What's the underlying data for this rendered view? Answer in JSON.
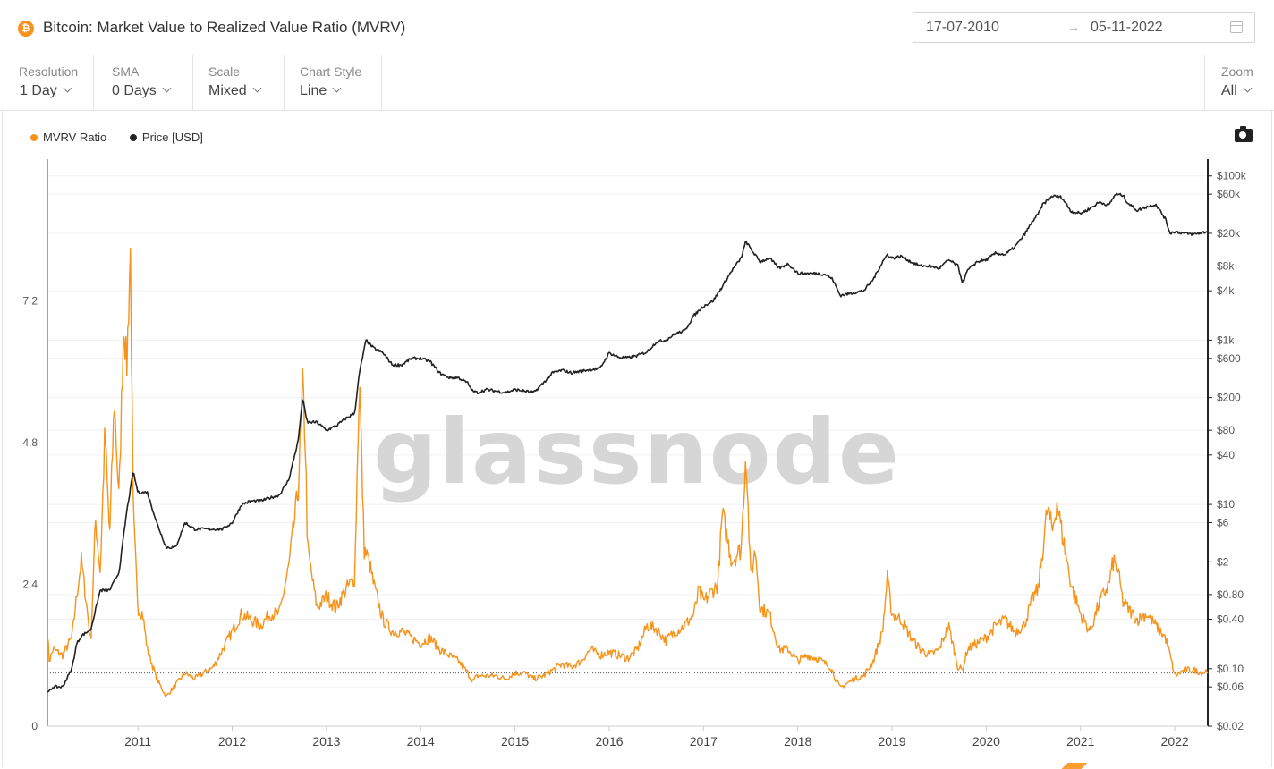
{
  "header": {
    "title": "Bitcoin: Market Value to Realized Value Ratio (MVRV)",
    "coin_symbol": "₿",
    "date_from": "17-07-2010",
    "date_arrow": "→",
    "date_to": "05-11-2022"
  },
  "controls": {
    "resolution": {
      "label": "Resolution",
      "value": "1 Day"
    },
    "sma": {
      "label": "SMA",
      "value": "0 Days"
    },
    "scale": {
      "label": "Scale",
      "value": "Mixed"
    },
    "chart_style": {
      "label": "Chart Style",
      "value": "Line"
    },
    "zoom": {
      "label": "Zoom",
      "value": "All"
    }
  },
  "legend": [
    {
      "label": "MVRV Ratio",
      "color": "#f7931a"
    },
    {
      "label": "Price [USD]",
      "color": "#222222"
    }
  ],
  "watermark": "glassnode",
  "chart_data": {
    "type": "line",
    "title": "Bitcoin: Market Value to Realized Value Ratio (MVRV)",
    "x_ticks": [
      "2011",
      "2012",
      "2013",
      "2014",
      "2015",
      "2016",
      "2017",
      "2018",
      "2019",
      "2020",
      "2021",
      "2022"
    ],
    "x_range": [
      2010.54,
      2022.85
    ],
    "left_axis": {
      "label": "MVRV Ratio",
      "range": [
        0,
        9.6
      ],
      "ticks": [
        "0",
        "2.4",
        "4.8",
        "7.2"
      ],
      "tick_values": [
        0,
        2.4,
        4.8,
        7.2
      ]
    },
    "right_axis": {
      "label": "Price [USD]",
      "scale": "log",
      "range": [
        0.02,
        160000
      ],
      "ticks": [
        "$0.02",
        "$0.06",
        "$0.10",
        "$0.40",
        "$0.80",
        "$2",
        "$6",
        "$10",
        "$40",
        "$80",
        "$200",
        "$600",
        "$1k",
        "$4k",
        "$8k",
        "$20k",
        "$60k",
        "$100k"
      ],
      "tick_values": [
        0.02,
        0.06,
        0.1,
        0.4,
        0.8,
        2,
        6,
        10,
        40,
        80,
        200,
        600,
        1000,
        4000,
        8000,
        20000,
        60000,
        100000
      ]
    },
    "reference_line": {
      "axis": "left",
      "value": 0.9,
      "style": "dotted"
    },
    "series": [
      {
        "name": "MVRV Ratio",
        "axis": "left",
        "color": "#f7931a",
        "x": [
          2010.54,
          2010.56,
          2010.6,
          2010.7,
          2010.8,
          2010.85,
          2010.9,
          2010.96,
          2011.0,
          2011.05,
          2011.1,
          2011.15,
          2011.2,
          2011.25,
          2011.3,
          2011.35,
          2011.38,
          2011.42,
          2011.45,
          2011.5,
          2011.55,
          2011.6,
          2011.7,
          2011.8,
          2011.9,
          2012.0,
          2012.1,
          2012.2,
          2012.3,
          2012.4,
          2012.5,
          2012.6,
          2012.7,
          2012.8,
          2012.9,
          2013.0,
          2013.1,
          2013.2,
          2013.25,
          2013.28,
          2013.3,
          2013.35,
          2013.4,
          2013.5,
          2013.6,
          2013.7,
          2013.8,
          2013.85,
          2013.9,
          2013.95,
          2014.0,
          2014.1,
          2014.2,
          2014.3,
          2014.4,
          2014.5,
          2014.6,
          2014.7,
          2014.8,
          2014.9,
          2015.0,
          2015.05,
          2015.1,
          2015.2,
          2015.3,
          2015.4,
          2015.5,
          2015.6,
          2015.7,
          2015.8,
          2015.9,
          2016.0,
          2016.1,
          2016.2,
          2016.3,
          2016.4,
          2016.5,
          2016.6,
          2016.7,
          2016.8,
          2016.9,
          2017.0,
          2017.1,
          2017.2,
          2017.3,
          2017.4,
          2017.45,
          2017.5,
          2017.6,
          2017.65,
          2017.7,
          2017.8,
          2017.9,
          2017.95,
          2018.0,
          2018.05,
          2018.1,
          2018.2,
          2018.3,
          2018.4,
          2018.5,
          2018.6,
          2018.7,
          2018.8,
          2018.85,
          2018.9,
          2018.95,
          2019.0,
          2019.1,
          2019.2,
          2019.3,
          2019.4,
          2019.45,
          2019.5,
          2019.6,
          2019.7,
          2019.8,
          2019.9,
          2020.0,
          2020.1,
          2020.2,
          2020.25,
          2020.3,
          2020.4,
          2020.5,
          2020.6,
          2020.7,
          2020.8,
          2020.9,
          2021.0,
          2021.05,
          2021.1,
          2021.15,
          2021.2,
          2021.25,
          2021.3,
          2021.4,
          2021.5,
          2021.6,
          2021.7,
          2021.8,
          2021.85,
          2021.9,
          2021.95,
          2022.0,
          2022.1,
          2022.2,
          2022.3,
          2022.4,
          2022.45,
          2022.5,
          2022.6,
          2022.7,
          2022.8,
          2022.85
        ],
        "values": [
          1.6,
          1.1,
          1.3,
          1.2,
          1.5,
          2.2,
          2.8,
          2.0,
          1.4,
          3.5,
          2.6,
          5.0,
          3.2,
          5.5,
          3.8,
          7.0,
          6.0,
          8.1,
          3.6,
          2.0,
          1.9,
          1.3,
          0.8,
          0.5,
          0.7,
          0.9,
          0.8,
          0.9,
          1.0,
          1.3,
          1.6,
          1.9,
          1.8,
          1.7,
          1.9,
          1.9,
          2.7,
          4.0,
          5.8,
          4.6,
          3.0,
          2.5,
          2.0,
          2.2,
          2.0,
          2.3,
          2.5,
          5.9,
          3.0,
          2.8,
          2.4,
          1.8,
          1.6,
          1.6,
          1.5,
          1.4,
          1.5,
          1.3,
          1.2,
          1.1,
          0.9,
          0.75,
          0.85,
          0.85,
          0.85,
          0.8,
          0.9,
          0.9,
          0.8,
          0.85,
          0.95,
          1.05,
          1.0,
          1.1,
          1.3,
          1.2,
          1.25,
          1.2,
          1.15,
          1.3,
          1.7,
          1.65,
          1.45,
          1.6,
          1.7,
          1.9,
          2.3,
          2.1,
          2.3,
          2.4,
          3.6,
          2.8,
          3.0,
          4.7,
          2.5,
          3.0,
          2.0,
          1.9,
          1.3,
          1.3,
          1.1,
          1.2,
          1.15,
          1.05,
          1.0,
          0.8,
          0.65,
          0.7,
          0.8,
          0.85,
          1.1,
          1.6,
          2.5,
          1.9,
          1.8,
          1.5,
          1.3,
          1.2,
          1.3,
          1.7,
          1.0,
          0.95,
          1.3,
          1.4,
          1.5,
          1.7,
          1.8,
          1.6,
          1.7,
          2.2,
          2.3,
          3.0,
          3.7,
          3.3,
          3.8,
          3.3,
          2.4,
          1.9,
          1.6,
          2.1,
          2.4,
          2.8,
          2.6,
          2.1,
          2.0,
          1.8,
          1.9,
          1.7,
          1.5,
          1.2,
          0.85,
          0.95,
          0.95,
          0.9,
          0.95
        ]
      },
      {
        "name": "Price [USD]",
        "axis": "right",
        "color": "#222222",
        "x": [
          2010.54,
          2010.6,
          2010.7,
          2010.8,
          2010.85,
          2010.9,
          2011.0,
          2011.1,
          2011.2,
          2011.3,
          2011.38,
          2011.45,
          2011.5,
          2011.6,
          2011.7,
          2011.8,
          2011.9,
          2012.0,
          2012.1,
          2012.2,
          2012.3,
          2012.4,
          2012.5,
          2012.6,
          2012.7,
          2012.8,
          2012.9,
          2013.0,
          2013.1,
          2013.2,
          2013.25,
          2013.28,
          2013.3,
          2013.4,
          2013.5,
          2013.6,
          2013.7,
          2013.8,
          2013.85,
          2013.92,
          2014.0,
          2014.1,
          2014.2,
          2014.3,
          2014.4,
          2014.5,
          2014.6,
          2014.7,
          2014.8,
          2014.9,
          2015.0,
          2015.05,
          2015.1,
          2015.2,
          2015.3,
          2015.4,
          2015.5,
          2015.6,
          2015.7,
          2015.8,
          2015.9,
          2016.0,
          2016.1,
          2016.2,
          2016.3,
          2016.4,
          2016.5,
          2016.6,
          2016.7,
          2016.8,
          2016.9,
          2017.0,
          2017.1,
          2017.2,
          2017.3,
          2017.4,
          2017.5,
          2017.6,
          2017.7,
          2017.8,
          2017.9,
          2017.95,
          2018.0,
          2018.1,
          2018.2,
          2018.3,
          2018.4,
          2018.5,
          2018.6,
          2018.7,
          2018.8,
          2018.87,
          2018.95,
          2019.0,
          2019.1,
          2019.2,
          2019.3,
          2019.4,
          2019.45,
          2019.5,
          2019.6,
          2019.7,
          2019.8,
          2019.9,
          2020.0,
          2020.1,
          2020.2,
          2020.25,
          2020.3,
          2020.4,
          2020.5,
          2020.6,
          2020.7,
          2020.8,
          2020.9,
          2021.0,
          2021.05,
          2021.1,
          2021.2,
          2021.3,
          2021.4,
          2021.5,
          2021.6,
          2021.7,
          2021.8,
          2021.87,
          2021.95,
          2022.0,
          2022.1,
          2022.2,
          2022.3,
          2022.4,
          2022.45,
          2022.5,
          2022.6,
          2022.7,
          2022.8,
          2022.85
        ],
        "values": [
          0.05,
          0.06,
          0.06,
          0.1,
          0.2,
          0.25,
          0.3,
          0.9,
          0.9,
          1.5,
          8,
          25,
          14,
          14,
          6,
          3,
          3,
          6,
          5,
          5,
          5,
          5,
          6,
          10,
          11,
          11,
          12,
          13,
          20,
          60,
          200,
          120,
          100,
          100,
          80,
          90,
          110,
          130,
          400,
          1000,
          800,
          700,
          500,
          500,
          600,
          600,
          550,
          400,
          350,
          350,
          300,
          240,
          230,
          250,
          240,
          230,
          250,
          240,
          230,
          300,
          400,
          430,
          400,
          420,
          440,
          450,
          700,
          620,
          610,
          650,
          720,
          950,
          1000,
          1200,
          1300,
          2000,
          2600,
          3000,
          4500,
          7000,
          10000,
          16000,
          13000,
          9000,
          10000,
          7500,
          8500,
          6500,
          6500,
          6500,
          6300,
          5500,
          3500,
          3600,
          3800,
          4000,
          5500,
          9000,
          11000,
          10000,
          10500,
          9000,
          8000,
          8000,
          7500,
          9500,
          8000,
          5000,
          7000,
          9000,
          9500,
          11500,
          11000,
          13500,
          19000,
          29000,
          34000,
          45000,
          57000,
          55000,
          37000,
          35000,
          40000,
          48000,
          44000,
          60000,
          58000,
          47000,
          38000,
          42000,
          45000,
          30000,
          20000,
          21000,
          20000,
          19500,
          20500,
          21000
        ]
      }
    ]
  }
}
